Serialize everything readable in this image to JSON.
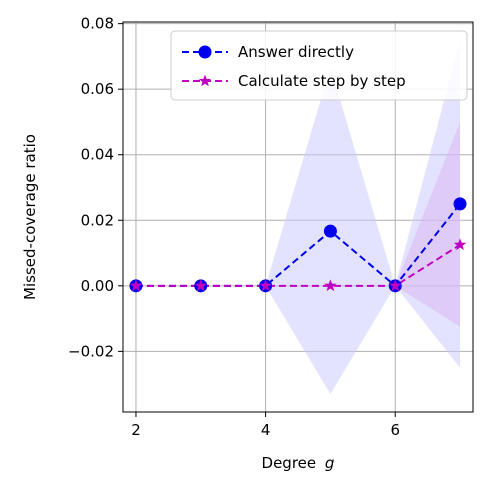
{
  "chart_data": {
    "type": "line",
    "xlabel": "Degree",
    "xlabel_var": "g",
    "ylabel": "Missed-coverage ratio",
    "xlim": [
      1.8,
      7.2
    ],
    "ylim": [
      -0.0385,
      0.0805
    ],
    "xticks": [
      2,
      4,
      6
    ],
    "xtick_labels": [
      "2",
      "4",
      "6"
    ],
    "yticks": [
      -0.02,
      0.0,
      0.02,
      0.04,
      0.06,
      0.08
    ],
    "ytick_labels": [
      "−0.02",
      "0.00",
      "0.02",
      "0.04",
      "0.06",
      "0.08"
    ],
    "grid": true,
    "legend_position": "top-right",
    "x": [
      2,
      3,
      4,
      5,
      6,
      7
    ],
    "series": [
      {
        "name": "Answer directly",
        "color": "#0000ee",
        "band_color": "#c8c8ff",
        "marker": "circle",
        "line_style": "dashed",
        "values": [
          0.0,
          0.0,
          0.0,
          0.0167,
          0.0,
          0.025
        ],
        "band_low": [
          0.0,
          0.0,
          0.0,
          -0.033,
          0.0,
          -0.025
        ],
        "band_high": [
          0.0,
          0.0,
          0.0,
          0.0667,
          0.0,
          0.075
        ]
      },
      {
        "name": "Calculate step by step",
        "color": "#c000c0",
        "band_color": "#d9b3f0",
        "marker": "star",
        "line_style": "dashed",
        "values": [
          0.0,
          0.0,
          0.0,
          0.0,
          0.0,
          0.0125
        ],
        "band_low": [
          0.0,
          0.0,
          0.0,
          0.0,
          0.0,
          -0.0125
        ],
        "band_high": [
          0.0,
          0.0,
          0.0,
          0.0,
          0.0,
          0.05
        ]
      }
    ]
  }
}
